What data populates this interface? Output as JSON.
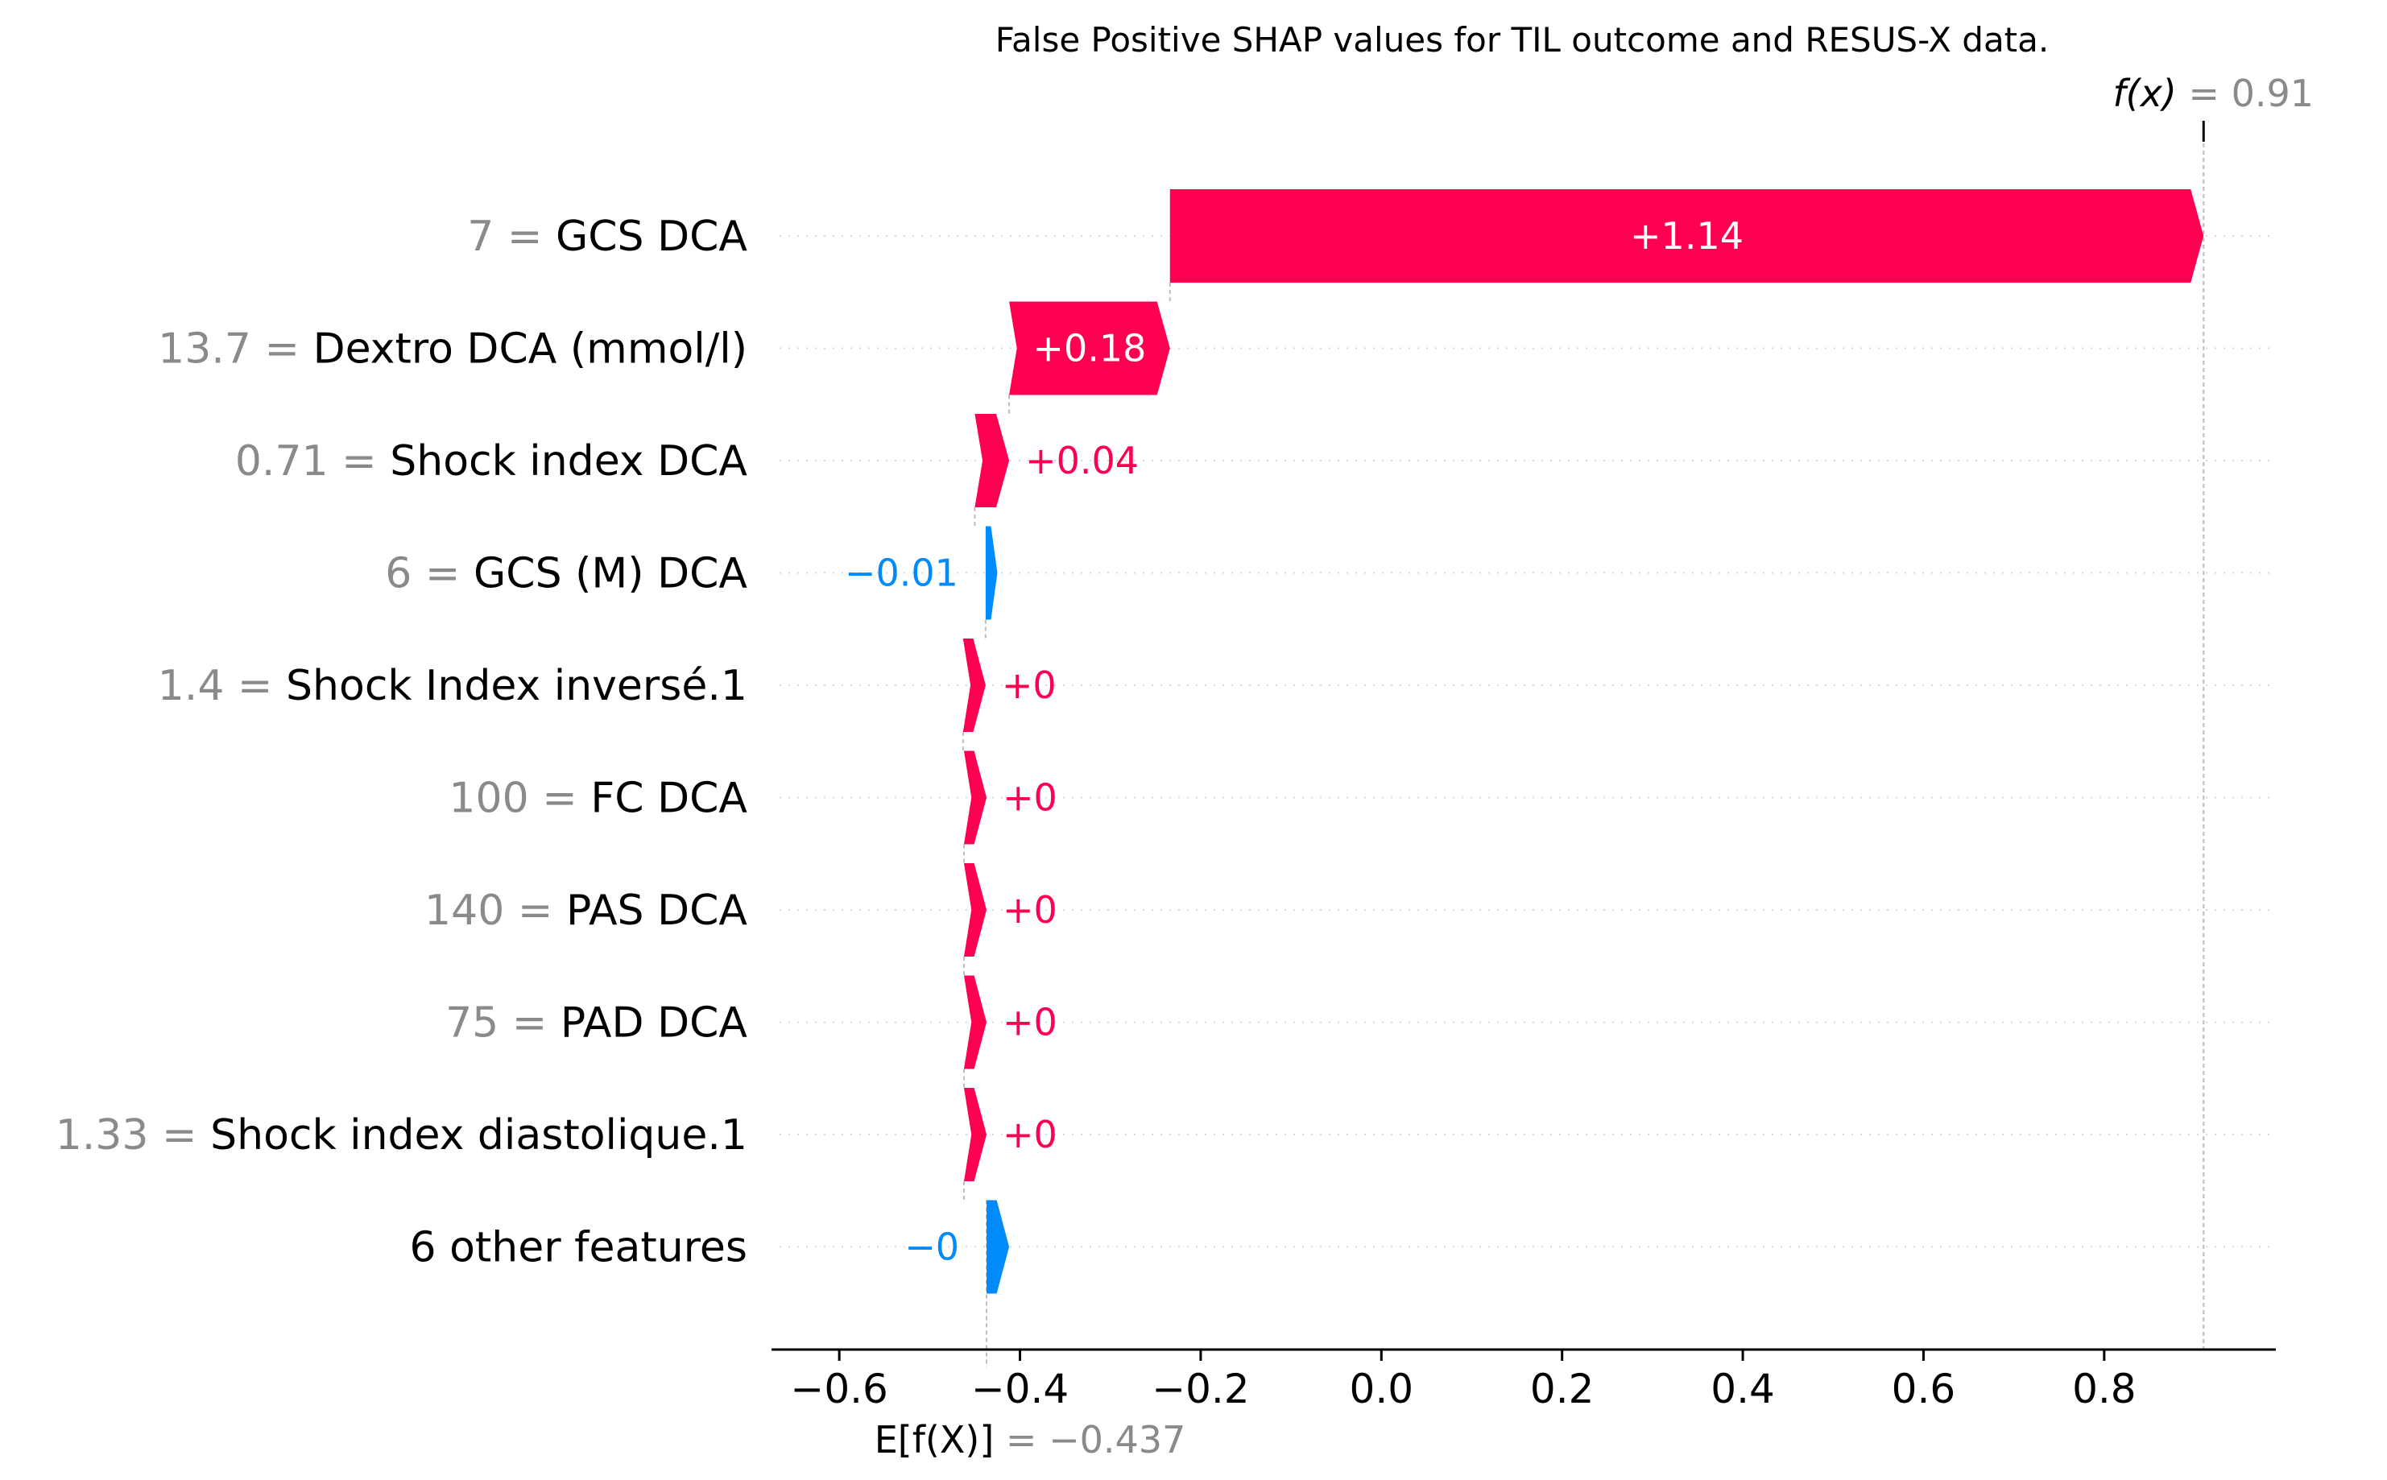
{
  "chart_data": {
    "type": "bar",
    "title": "False Positive SHAP values for TIL outcome and RESUS-X data.",
    "fx": {
      "label": "f(x)",
      "value": "0.91",
      "number": 0.91
    },
    "efx": {
      "label": "E[f(X)]",
      "value": "−0.437",
      "number": -0.437
    },
    "xlim": [
      -0.675,
      0.99
    ],
    "xticks": [
      {
        "value": -0.6,
        "label": "−0.6"
      },
      {
        "value": -0.4,
        "label": "−0.4"
      },
      {
        "value": -0.2,
        "label": "−0.2"
      },
      {
        "value": 0.0,
        "label": "0.0"
      },
      {
        "value": 0.2,
        "label": "0.2"
      },
      {
        "value": 0.4,
        "label": "0.4"
      },
      {
        "value": 0.6,
        "label": "0.6"
      },
      {
        "value": 0.8,
        "label": "0.8"
      }
    ],
    "bars": [
      {
        "feature_value": "7",
        "name": "GCS DCA",
        "start": -0.234,
        "end": 0.91,
        "label": "+1.14",
        "sign": "pos"
      },
      {
        "feature_value": "13.7",
        "name": "Dextro DCA (mmol/l)",
        "start": -0.412,
        "end": -0.234,
        "label": "+0.18",
        "sign": "pos"
      },
      {
        "feature_value": "0.71",
        "name": "Shock index DCA",
        "start": -0.45,
        "end": -0.412,
        "label": "+0.04",
        "sign": "pos"
      },
      {
        "feature_value": "6",
        "name": "GCS (M) DCA",
        "start": -0.438,
        "end": -0.425,
        "label": "−0.01",
        "sign": "neg"
      },
      {
        "feature_value": "1.4",
        "name": "Shock Index inversé.1",
        "start": -0.463,
        "end": -0.438,
        "label": "+0",
        "sign": "pos"
      },
      {
        "feature_value": "100",
        "name": "FC  DCA",
        "start": -0.462,
        "end": -0.437,
        "label": "+0",
        "sign": "pos"
      },
      {
        "feature_value": "140",
        "name": "PAS DCA",
        "start": -0.462,
        "end": -0.437,
        "label": "+0",
        "sign": "pos"
      },
      {
        "feature_value": "75",
        "name": "PAD DCA",
        "start": -0.462,
        "end": -0.437,
        "label": "+0",
        "sign": "pos"
      },
      {
        "feature_value": "1.33",
        "name": "Shock index diastolique.1",
        "start": -0.462,
        "end": -0.437,
        "label": "+0",
        "sign": "pos"
      },
      {
        "feature_value": "",
        "name": "6 other features",
        "start": -0.437,
        "end": -0.412,
        "label": "−0",
        "sign": "neg"
      }
    ],
    "colors": {
      "positive": "#ff0051",
      "negative": "#008bfb"
    }
  }
}
